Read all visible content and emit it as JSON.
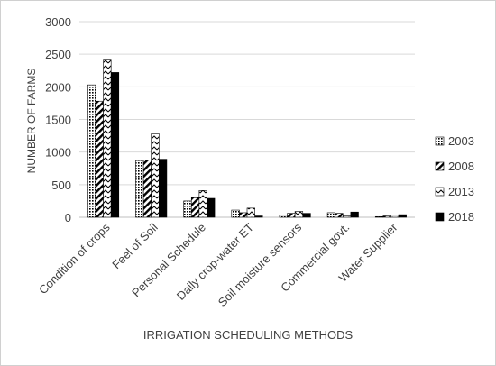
{
  "chart_data": {
    "type": "bar",
    "title": "",
    "xlabel": "IRRIGATION SCHEDULING METHODS",
    "ylabel": "NUMBER OF FARMS",
    "ylim": [
      0,
      3000
    ],
    "yticks": [
      0,
      500,
      1000,
      1500,
      2000,
      2500,
      3000
    ],
    "grid": true,
    "legend_position": "right",
    "categories": [
      "Condition of crops",
      "Feel of Soil",
      "Personal Schedule",
      "Daily crop-water ET",
      "Soil moisture sensors",
      "Commercial govt.",
      "Water Supplier"
    ],
    "series": [
      {
        "name": "2003",
        "pattern": "dots",
        "values": [
          2030,
          870,
          250,
          110,
          30,
          70,
          10
        ]
      },
      {
        "name": "2008",
        "pattern": "diagonal",
        "values": [
          1780,
          880,
          300,
          70,
          60,
          60,
          20
        ]
      },
      {
        "name": "2013",
        "pattern": "zigzag",
        "values": [
          2410,
          1280,
          410,
          140,
          90,
          20,
          30
        ]
      },
      {
        "name": "2018",
        "pattern": "solid",
        "values": [
          2220,
          890,
          290,
          20,
          60,
          80,
          40
        ]
      }
    ]
  }
}
